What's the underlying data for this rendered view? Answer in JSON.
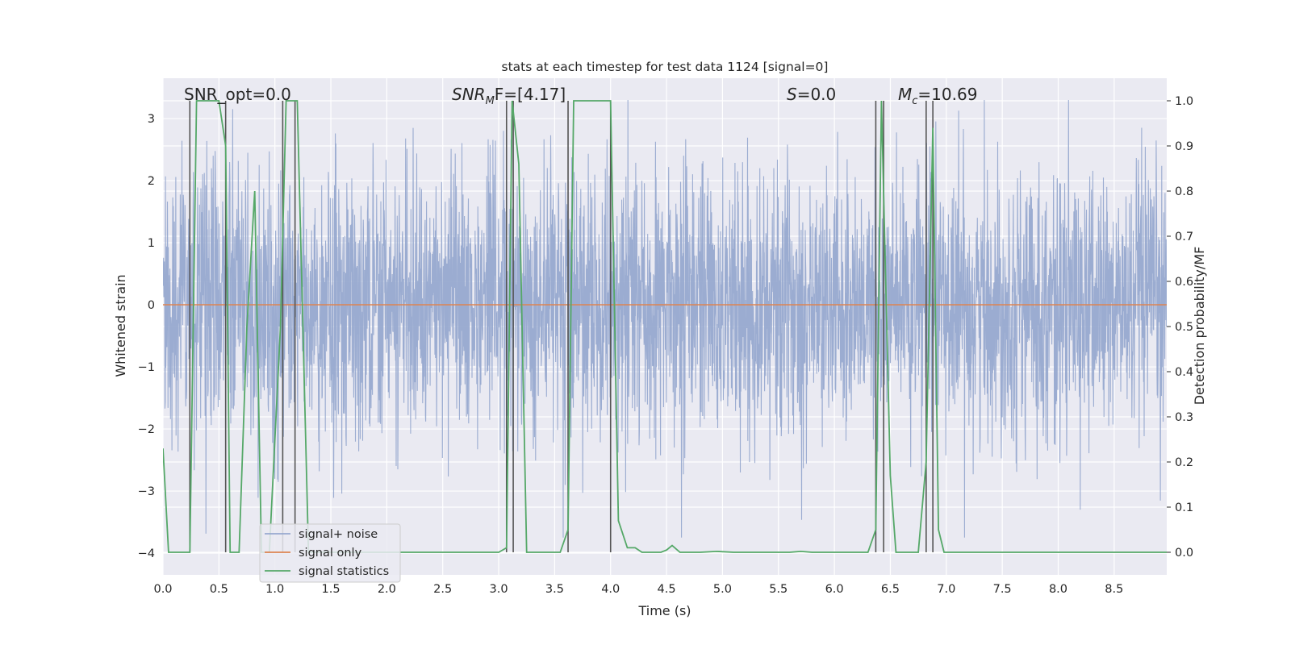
{
  "chart_data": {
    "type": "line",
    "title": "stats at each timestep for test data 1124 [signal=0]",
    "xlabel": "Time (s)",
    "ylabel": "Whitened strain",
    "y2label": "Detection probability/MF",
    "xlim": [
      0.0,
      8.97
    ],
    "ylim": [
      -4.35,
      3.65
    ],
    "y2lim": [
      -0.05,
      1.05
    ],
    "xticks": [
      0.0,
      0.5,
      1.0,
      1.5,
      2.0,
      2.5,
      3.0,
      3.5,
      4.0,
      4.5,
      5.0,
      5.5,
      6.0,
      6.5,
      7.0,
      7.5,
      8.0,
      8.5
    ],
    "xtick_labels": [
      "0.0",
      "0.5",
      "1.0",
      "1.5",
      "2.0",
      "2.5",
      "3.0",
      "3.5",
      "4.0",
      "4.5",
      "5.0",
      "5.5",
      "6.0",
      "6.5",
      "7.0",
      "7.5",
      "8.0",
      "8.5"
    ],
    "yticks": [
      -4,
      -3,
      -2,
      -1,
      0,
      1,
      2,
      3
    ],
    "ytick_labels": [
      "−4",
      "−3",
      "−2",
      "−1",
      "0",
      "1",
      "2",
      "3"
    ],
    "y2ticks": [
      0.0,
      0.1,
      0.2,
      0.3,
      0.4,
      0.5,
      0.6,
      0.7,
      0.8,
      0.9,
      1.0
    ],
    "y2tick_labels": [
      "0.0",
      "0.1",
      "0.2",
      "0.3",
      "0.4",
      "0.5",
      "0.6",
      "0.7",
      "0.8",
      "0.9",
      "1.0"
    ],
    "grid": true,
    "legend_position": "lower-left",
    "annotations": {
      "snr_opt": "SNR_opt=0.0",
      "snr_mf_main": "SNR",
      "snr_mf_sub": "M",
      "snr_mf_rest": "F=[4.17]",
      "s_main": "S",
      "s_rest": "=0.0",
      "mc_main": "M",
      "mc_sub": "c",
      "mc_rest": "=10.69"
    },
    "series": [
      {
        "name": "signal+ noise",
        "color": "#97a9cf",
        "axis": "left",
        "description_values": "dense whitened noise, roughly -3.7 to 3.2, sampled over the full 0 to 8.97 s range"
      },
      {
        "name": "signal only",
        "color": "#dd8452",
        "axis": "left",
        "x": [
          0.0,
          8.97
        ],
        "y": [
          0.0,
          0.0
        ]
      },
      {
        "name": "signal statistics",
        "color": "#55a868",
        "axis": "right",
        "x": [
          0.0,
          0.05,
          0.1,
          0.2,
          0.24,
          0.3,
          0.35,
          0.45,
          0.5,
          0.56,
          0.6,
          0.68,
          0.75,
          0.82,
          0.88,
          0.95,
          1.05,
          1.1,
          1.15,
          1.2,
          1.25,
          1.3,
          1.35,
          3.0,
          3.07,
          3.12,
          3.18,
          3.25,
          3.55,
          3.62,
          3.67,
          3.72,
          4.0,
          4.07,
          4.15,
          4.22,
          4.28,
          4.35,
          4.45,
          4.5,
          4.55,
          4.62,
          4.8,
          4.95,
          5.1,
          5.6,
          5.7,
          5.8,
          6.3,
          6.37,
          6.42,
          6.5,
          6.55,
          6.6,
          6.75,
          6.82,
          6.88,
          6.93,
          6.98,
          7.05,
          8.97
        ],
        "y": [
          0.23,
          0.0,
          0.0,
          0.0,
          0.0,
          1.0,
          1.0,
          1.0,
          1.0,
          0.9,
          0.0,
          0.0,
          0.5,
          0.8,
          0.0,
          0.0,
          0.5,
          1.0,
          1.0,
          1.0,
          0.5,
          0.0,
          0.0,
          0.0,
          0.01,
          1.0,
          0.86,
          0.0,
          0.0,
          0.05,
          1.0,
          1.0,
          1.0,
          0.07,
          0.01,
          0.01,
          0.0,
          0.0,
          0.0,
          0.005,
          0.015,
          0.0,
          0.0,
          0.002,
          0.0,
          0.0,
          0.002,
          0.0,
          0.0,
          0.05,
          1.0,
          0.17,
          0.0,
          0.0,
          0.0,
          0.2,
          0.94,
          0.05,
          0.0,
          0.0,
          0.0
        ]
      }
    ],
    "marker_lines": [
      0.24,
      0.56,
      1.07,
      1.18,
      3.07,
      3.13,
      3.62,
      4.0,
      6.37,
      6.44,
      6.82,
      6.88
    ]
  }
}
